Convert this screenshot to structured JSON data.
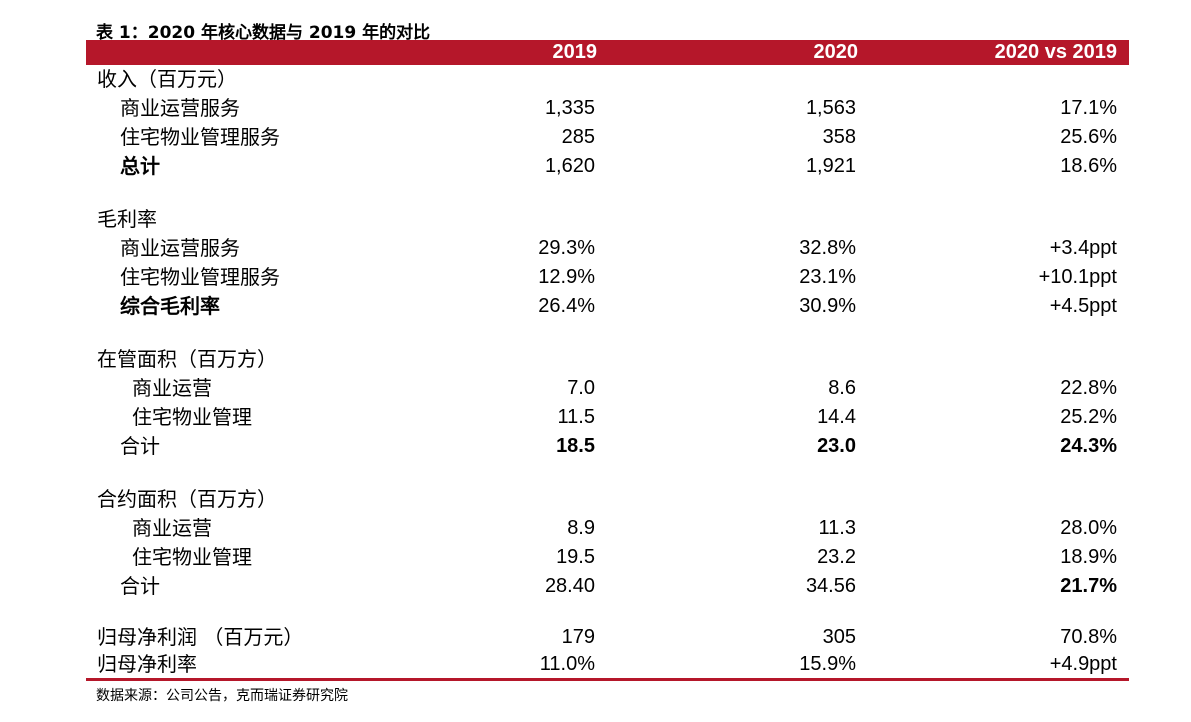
{
  "title": "表 1：2020 年核心数据与 2019 年的对比",
  "header": {
    "col1": "2019",
    "col2": "2020",
    "col3": "2020 vs 2019"
  },
  "colors": {
    "accent": "#b5172a"
  },
  "sections": {
    "revenue": {
      "heading": "收入（百万元）",
      "rows": [
        {
          "label": "商业运营服务",
          "v2019": "1,335",
          "v2020": "1,563",
          "change": "17.1%"
        },
        {
          "label": "住宅物业管理服务",
          "v2019": "285",
          "v2020": "358",
          "change": "25.6%"
        },
        {
          "label": "总计",
          "v2019": "1,620",
          "v2020": "1,921",
          "change": "18.6%"
        }
      ]
    },
    "gross_margin": {
      "heading": "毛利率",
      "rows": [
        {
          "label": "商业运营服务",
          "v2019": "29.3%",
          "v2020": "32.8%",
          "change": "+3.4ppt"
        },
        {
          "label": "住宅物业管理服务",
          "v2019": "12.9%",
          "v2020": "23.1%",
          "change": "+10.1ppt"
        },
        {
          "label": "综合毛利率",
          "v2019": "26.4%",
          "v2020": "30.9%",
          "change": "+4.5ppt"
        }
      ]
    },
    "managed_area": {
      "heading": "在管面积（百万方）",
      "rows": [
        {
          "label": "商业运营",
          "v2019": "7.0",
          "v2020": "8.6",
          "change": "22.8%"
        },
        {
          "label": "住宅物业管理",
          "v2019": "11.5",
          "v2020": "14.4",
          "change": "25.2%"
        },
        {
          "label": "合计",
          "v2019": "18.5",
          "v2020": "23.0",
          "change": "24.3%"
        }
      ]
    },
    "contracted_area": {
      "heading": "合约面积（百万方）",
      "rows": [
        {
          "label": "商业运营",
          "v2019": "8.9",
          "v2020": "11.3",
          "change": "28.0%"
        },
        {
          "label": "住宅物业管理",
          "v2019": "19.5",
          "v2020": "23.2",
          "change": "18.9%"
        },
        {
          "label": "合计",
          "v2019": "28.40",
          "v2020": "34.56",
          "change": "21.7%"
        }
      ]
    },
    "net_profit": {
      "rows": [
        {
          "label": "归母净利润 （百万元）",
          "v2019": "179",
          "v2020": "305",
          "change": "70.8%"
        },
        {
          "label": "归母净利率",
          "v2019": "11.0%",
          "v2020": "15.9%",
          "change": "+4.9ppt"
        }
      ]
    }
  },
  "source": "数据来源：公司公告，克而瑞证券研究院"
}
